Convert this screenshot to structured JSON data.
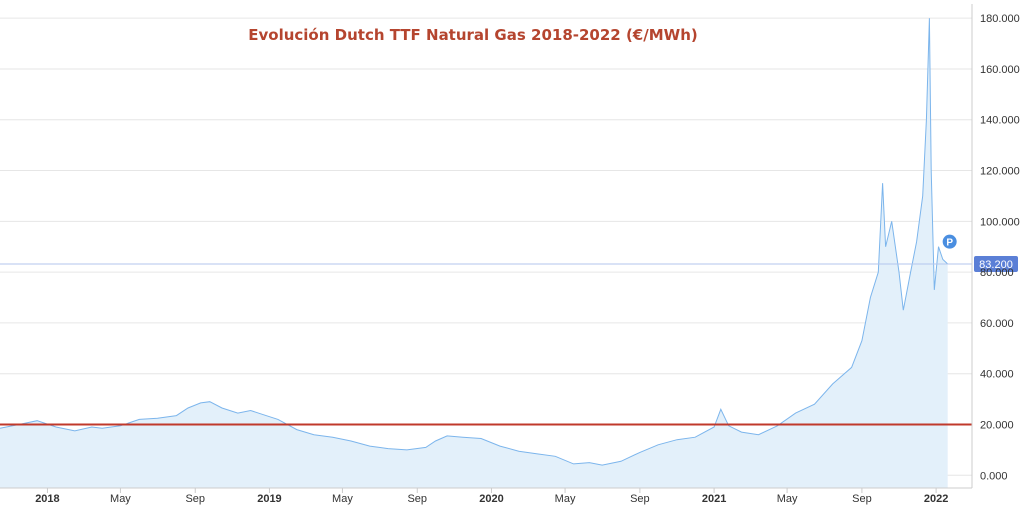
{
  "chart_data": {
    "type": "area",
    "title": "Evolución Dutch TTF Natural Gas 2018-2022 (€/MWh)",
    "xlabel": "",
    "ylabel": "",
    "ylim": [
      -5,
      184
    ],
    "yticks": [
      0,
      20,
      40,
      60,
      80,
      100,
      120,
      140,
      160,
      180
    ],
    "ytick_labels": [
      "0.000",
      "20.000",
      "40.000",
      "60.000",
      "80.000",
      "100.000",
      "120.000",
      "140.000",
      "160.000",
      "180.000"
    ],
    "xlim": [
      "2017-10-15",
      "2022-03-01"
    ],
    "xticks": [
      {
        "date": "2018-01-01",
        "label": "2018",
        "bold": true
      },
      {
        "date": "2018-05-01",
        "label": "May",
        "bold": false
      },
      {
        "date": "2018-09-01",
        "label": "Sep",
        "bold": false
      },
      {
        "date": "2019-01-01",
        "label": "2019",
        "bold": true
      },
      {
        "date": "2019-05-01",
        "label": "May",
        "bold": false
      },
      {
        "date": "2019-09-01",
        "label": "Sep",
        "bold": false
      },
      {
        "date": "2020-01-01",
        "label": "2020",
        "bold": true
      },
      {
        "date": "2020-05-01",
        "label": "May",
        "bold": false
      },
      {
        "date": "2020-09-01",
        "label": "Sep",
        "bold": false
      },
      {
        "date": "2021-01-01",
        "label": "2021",
        "bold": true
      },
      {
        "date": "2021-05-01",
        "label": "May",
        "bold": false
      },
      {
        "date": "2021-09-01",
        "label": "Sep",
        "bold": false
      },
      {
        "date": "2022-01-01",
        "label": "2022",
        "bold": true
      }
    ],
    "series": [
      {
        "color": "#7cb5ec",
        "fill": "#e3f0fa",
        "points": [
          [
            "2017-10-15",
            18.5
          ],
          [
            "2017-11-15",
            20.0
          ],
          [
            "2017-12-15",
            21.5
          ],
          [
            "2018-01-15",
            19.0
          ],
          [
            "2018-02-15",
            17.5
          ],
          [
            "2018-03-15",
            19.0
          ],
          [
            "2018-04-01",
            18.5
          ],
          [
            "2018-05-01",
            19.5
          ],
          [
            "2018-06-01",
            22.0
          ],
          [
            "2018-07-01",
            22.5
          ],
          [
            "2018-08-01",
            23.5
          ],
          [
            "2018-08-20",
            26.5
          ],
          [
            "2018-09-10",
            28.5
          ],
          [
            "2018-09-25",
            29.0
          ],
          [
            "2018-10-15",
            26.5
          ],
          [
            "2018-11-10",
            24.5
          ],
          [
            "2018-12-01",
            25.5
          ],
          [
            "2018-12-20",
            24.0
          ],
          [
            "2019-01-15",
            22.0
          ],
          [
            "2019-02-15",
            18.0
          ],
          [
            "2019-03-15",
            16.0
          ],
          [
            "2019-04-15",
            15.0
          ],
          [
            "2019-05-15",
            13.5
          ],
          [
            "2019-06-15",
            11.5
          ],
          [
            "2019-07-15",
            10.5
          ],
          [
            "2019-08-15",
            10.0
          ],
          [
            "2019-09-15",
            11.0
          ],
          [
            "2019-10-01",
            13.5
          ],
          [
            "2019-10-20",
            15.5
          ],
          [
            "2019-11-15",
            15.0
          ],
          [
            "2019-12-15",
            14.5
          ],
          [
            "2020-01-15",
            11.5
          ],
          [
            "2020-02-15",
            9.5
          ],
          [
            "2020-03-15",
            8.5
          ],
          [
            "2020-04-15",
            7.5
          ],
          [
            "2020-05-15",
            4.5
          ],
          [
            "2020-06-10",
            5.0
          ],
          [
            "2020-07-01",
            4.0
          ],
          [
            "2020-08-01",
            5.5
          ],
          [
            "2020-09-01",
            9.0
          ],
          [
            "2020-10-01",
            12.0
          ],
          [
            "2020-11-01",
            14.0
          ],
          [
            "2020-12-01",
            15.0
          ],
          [
            "2021-01-01",
            19.0
          ],
          [
            "2021-01-12",
            26.0
          ],
          [
            "2021-01-25",
            19.5
          ],
          [
            "2021-02-15",
            17.0
          ],
          [
            "2021-03-15",
            16.0
          ],
          [
            "2021-04-15",
            19.5
          ],
          [
            "2021-05-15",
            24.5
          ],
          [
            "2021-06-15",
            28.0
          ],
          [
            "2021-07-15",
            36.0
          ],
          [
            "2021-08-15",
            42.5
          ],
          [
            "2021-09-01",
            53.0
          ],
          [
            "2021-09-15",
            70.0
          ],
          [
            "2021-09-28",
            80.0
          ],
          [
            "2021-10-05",
            115.0
          ],
          [
            "2021-10-10",
            90.0
          ],
          [
            "2021-10-20",
            100.0
          ],
          [
            "2021-11-01",
            80.0
          ],
          [
            "2021-11-08",
            65.0
          ],
          [
            "2021-11-20",
            80.0
          ],
          [
            "2021-11-30",
            92.0
          ],
          [
            "2021-12-10",
            110.0
          ],
          [
            "2021-12-16",
            140.0
          ],
          [
            "2021-12-21",
            180.0
          ],
          [
            "2021-12-24",
            120.0
          ],
          [
            "2021-12-29",
            73.0
          ],
          [
            "2022-01-05",
            90.0
          ],
          [
            "2022-01-12",
            85.0
          ],
          [
            "2022-01-20",
            83.2
          ]
        ]
      }
    ],
    "reference_lines": [
      {
        "value": 20,
        "color": "#c0392b",
        "width": 2
      },
      {
        "value": 83.2,
        "color": "#b3c6ee",
        "width": 1,
        "label": "83.200",
        "label_bg": "#5b7fd6"
      }
    ],
    "marker": {
      "label": "P",
      "value": 92,
      "color": "#4a8ee0"
    },
    "colors": {
      "title": "#b5452f",
      "grid": "#e6e6e6",
      "axis": "#cccccc"
    }
  }
}
